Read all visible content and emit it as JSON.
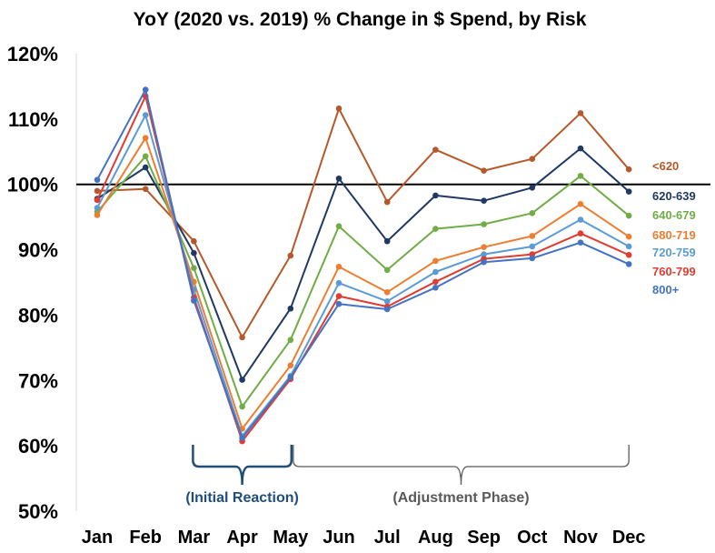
{
  "chart_data": {
    "type": "line",
    "title": "YoY (2020 vs. 2019) % Change in $ Spend, by Risk",
    "xlabel": "",
    "ylabel": "",
    "categories": [
      "Jan",
      "Feb",
      "Mar",
      "Apr",
      "May",
      "Jun",
      "Jul",
      "Aug",
      "Sep",
      "Oct",
      "Nov",
      "Dec"
    ],
    "ylim": [
      50,
      120
    ],
    "y_ticks": [
      "50%",
      "60%",
      "70%",
      "80%",
      "90%",
      "100%",
      "110%",
      "120%"
    ],
    "y_tick_values": [
      50,
      60,
      70,
      80,
      90,
      100,
      110,
      120
    ],
    "reference_line": 100,
    "grid": false,
    "legend": "right, labels at line ends",
    "series": [
      {
        "name": "<620",
        "color": "#b5592b",
        "values": [
          99.0,
          99.3,
          91.3,
          76.6,
          89.1,
          111.6,
          97.3,
          105.3,
          102.1,
          103.9,
          110.9,
          102.3
        ]
      },
      {
        "name": "620-639",
        "color": "#1f3864",
        "values": [
          97.8,
          102.6,
          89.5,
          70.1,
          81.0,
          100.9,
          91.3,
          98.3,
          97.5,
          99.5,
          105.5,
          98.9
        ]
      },
      {
        "name": "640-679",
        "color": "#70ad47",
        "values": [
          95.8,
          104.3,
          87.2,
          66.0,
          76.2,
          93.6,
          86.9,
          93.2,
          93.9,
          95.6,
          101.3,
          95.2
        ]
      },
      {
        "name": "680-719",
        "color": "#ed7d31",
        "values": [
          95.3,
          107.1,
          85.1,
          62.6,
          72.3,
          87.4,
          83.5,
          88.3,
          90.4,
          92.1,
          97.0,
          92.0
        ]
      },
      {
        "name": "720-759",
        "color": "#5b9bd5",
        "values": [
          96.4,
          110.6,
          83.9,
          61.5,
          70.7,
          84.9,
          82.1,
          86.6,
          89.3,
          90.5,
          94.6,
          90.5
        ]
      },
      {
        "name": "760-799",
        "color": "#e03c31",
        "values": [
          97.6,
          113.5,
          82.7,
          60.7,
          70.2,
          82.9,
          81.3,
          85.1,
          88.6,
          89.3,
          92.5,
          89.2
        ]
      },
      {
        "name": "800+",
        "color": "#4472c4",
        "values": [
          100.7,
          114.5,
          82.2,
          61.2,
          70.5,
          81.7,
          80.9,
          84.2,
          88.1,
          88.7,
          91.1,
          87.8
        ]
      }
    ],
    "annotations": [
      {
        "text": "(Initial Reaction)",
        "from": "Mar",
        "to": "May",
        "color": "#1f4e79"
      },
      {
        "text": "(Adjustment Phase)",
        "from": "May",
        "to": "Dec",
        "color": "#595959"
      }
    ]
  }
}
